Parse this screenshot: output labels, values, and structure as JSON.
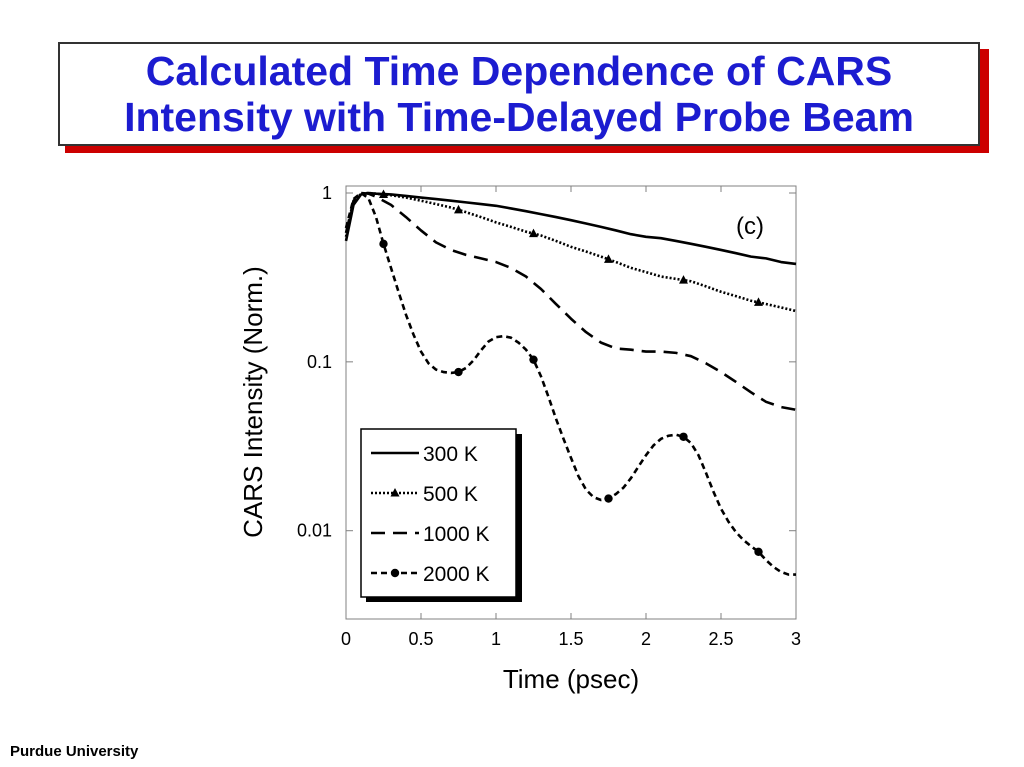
{
  "slide": {
    "title_line1": "Calculated Time Dependence of CARS",
    "title_line2": "Intensity with Time-Delayed Probe Beam",
    "footer": "Purdue University"
  },
  "colors": {
    "title": "#1c1cd0",
    "title_shadow": "#cc0000",
    "curves": "#000000"
  },
  "chart_data": {
    "type": "line",
    "title": "",
    "panel_label": "(c)",
    "xlabel": "Time (psec)",
    "ylabel": "CARS Intensity (Norm.)",
    "xlim": [
      0,
      3
    ],
    "ylim": [
      0.003,
      1.1
    ],
    "yscale": "log",
    "xticks": [
      0,
      0.5,
      1,
      1.5,
      2,
      2.5,
      3
    ],
    "xtick_labels": [
      "0",
      "0.5",
      "1",
      "1.5",
      "2",
      "2.5",
      "3"
    ],
    "yticks": [
      1,
      0.1,
      0.01
    ],
    "ytick_labels": [
      "1",
      "0.1",
      "0.01"
    ],
    "grid": false,
    "legend_position": "lower-left",
    "series": [
      {
        "name": "300 K",
        "line_style": "solid",
        "marker": "none",
        "x": [
          0,
          0.05,
          0.1,
          0.15,
          0.2,
          0.3,
          0.4,
          0.5,
          0.6,
          0.7,
          0.8,
          0.9,
          1.0,
          1.1,
          1.2,
          1.3,
          1.4,
          1.5,
          1.6,
          1.7,
          1.8,
          1.9,
          2.0,
          2.1,
          2.2,
          2.3,
          2.4,
          2.5,
          2.6,
          2.7,
          2.8,
          2.9,
          3.0
        ],
        "y": [
          0.52,
          0.85,
          0.98,
          1.0,
          0.99,
          0.98,
          0.96,
          0.94,
          0.92,
          0.9,
          0.88,
          0.86,
          0.84,
          0.81,
          0.78,
          0.75,
          0.72,
          0.69,
          0.66,
          0.63,
          0.6,
          0.57,
          0.55,
          0.54,
          0.52,
          0.5,
          0.48,
          0.46,
          0.44,
          0.42,
          0.41,
          0.39,
          0.38
        ]
      },
      {
        "name": "500 K",
        "line_style": "dotted",
        "marker": "triangle",
        "marker_x": [
          0.25,
          0.75,
          1.25,
          1.75,
          2.25,
          2.75
        ],
        "x": [
          0,
          0.05,
          0.1,
          0.15,
          0.2,
          0.3,
          0.4,
          0.5,
          0.6,
          0.7,
          0.8,
          0.9,
          1.0,
          1.1,
          1.2,
          1.3,
          1.4,
          1.5,
          1.6,
          1.7,
          1.8,
          1.9,
          2.0,
          2.1,
          2.2,
          2.3,
          2.4,
          2.5,
          2.6,
          2.7,
          2.8,
          2.9,
          3.0
        ],
        "y": [
          0.55,
          0.88,
          0.99,
          1.0,
          0.99,
          0.97,
          0.94,
          0.9,
          0.86,
          0.82,
          0.77,
          0.72,
          0.67,
          0.63,
          0.59,
          0.56,
          0.52,
          0.48,
          0.45,
          0.42,
          0.39,
          0.36,
          0.34,
          0.32,
          0.31,
          0.3,
          0.28,
          0.26,
          0.245,
          0.23,
          0.22,
          0.21,
          0.2
        ]
      },
      {
        "name": "1000 K",
        "line_style": "dashed",
        "marker": "none",
        "x": [
          0,
          0.05,
          0.1,
          0.15,
          0.2,
          0.3,
          0.4,
          0.5,
          0.6,
          0.7,
          0.8,
          0.9,
          1.0,
          1.1,
          1.2,
          1.3,
          1.4,
          1.5,
          1.6,
          1.7,
          1.8,
          1.9,
          2.0,
          2.1,
          2.2,
          2.3,
          2.4,
          2.5,
          2.6,
          2.7,
          2.8,
          2.9,
          3.0
        ],
        "y": [
          0.58,
          0.9,
          1.0,
          0.99,
          0.95,
          0.85,
          0.72,
          0.6,
          0.51,
          0.46,
          0.43,
          0.41,
          0.39,
          0.36,
          0.32,
          0.27,
          0.22,
          0.18,
          0.15,
          0.13,
          0.12,
          0.118,
          0.115,
          0.115,
          0.113,
          0.108,
          0.098,
          0.087,
          0.076,
          0.066,
          0.058,
          0.054,
          0.052
        ]
      },
      {
        "name": "2000 K",
        "line_style": "dashed-fine",
        "marker": "circle",
        "marker_x": [
          0.25,
          0.75,
          1.25,
          1.75,
          2.25,
          2.75
        ],
        "x": [
          0,
          0.05,
          0.1,
          0.15,
          0.2,
          0.25,
          0.3,
          0.35,
          0.4,
          0.45,
          0.5,
          0.55,
          0.6,
          0.65,
          0.7,
          0.75,
          0.8,
          0.85,
          0.9,
          0.95,
          1.0,
          1.05,
          1.1,
          1.15,
          1.2,
          1.25,
          1.3,
          1.35,
          1.4,
          1.45,
          1.5,
          1.55,
          1.6,
          1.65,
          1.7,
          1.75,
          1.8,
          1.85,
          1.9,
          1.95,
          2.0,
          2.05,
          2.1,
          2.15,
          2.2,
          2.25,
          2.3,
          2.35,
          2.4,
          2.45,
          2.5,
          2.55,
          2.6,
          2.65,
          2.7,
          2.75,
          2.8,
          2.85,
          2.9,
          2.95,
          3.0
        ],
        "y": [
          0.62,
          0.92,
          1.0,
          0.93,
          0.72,
          0.5,
          0.36,
          0.26,
          0.19,
          0.145,
          0.115,
          0.098,
          0.09,
          0.087,
          0.086,
          0.087,
          0.092,
          0.102,
          0.117,
          0.132,
          0.14,
          0.142,
          0.139,
          0.13,
          0.118,
          0.103,
          0.082,
          0.062,
          0.046,
          0.035,
          0.027,
          0.021,
          0.0175,
          0.0158,
          0.0152,
          0.0155,
          0.0165,
          0.018,
          0.0205,
          0.024,
          0.028,
          0.032,
          0.035,
          0.0365,
          0.037,
          0.036,
          0.033,
          0.028,
          0.022,
          0.017,
          0.0135,
          0.0113,
          0.0098,
          0.0088,
          0.0081,
          0.0075,
          0.0067,
          0.0061,
          0.0057,
          0.0055,
          0.0055
        ]
      }
    ]
  }
}
